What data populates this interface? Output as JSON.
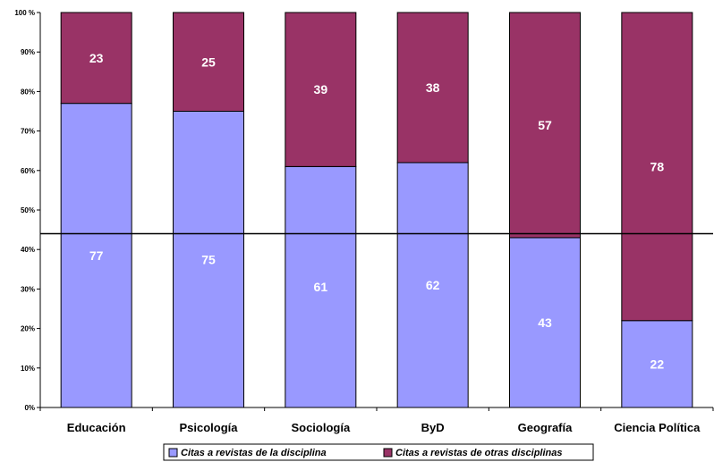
{
  "chart_data": {
    "type": "bar",
    "stacked": true,
    "percent_stacked": true,
    "categories": [
      "Educación",
      "Psicología",
      "Sociología",
      "ByD",
      "Geografía",
      "Ciencia Política"
    ],
    "series": [
      {
        "name": "Citas a revistas de la disciplina",
        "values": [
          77,
          75,
          61,
          62,
          43,
          22
        ]
      },
      {
        "name": "Citas a revistas de otras disciplinas",
        "values": [
          23,
          25,
          39,
          38,
          57,
          78
        ]
      }
    ],
    "yticks": [
      "0%",
      "10%",
      "20%",
      "30%",
      "40%",
      "50%",
      "60%",
      "70%",
      "80%",
      "90%",
      "100 %"
    ],
    "ylim": [
      0,
      100
    ],
    "reference_line": 44,
    "grid": false,
    "legend_position": "bottom",
    "colors": {
      "series1": "#9999ff",
      "series2": "#993366",
      "axis": "#000000"
    }
  }
}
